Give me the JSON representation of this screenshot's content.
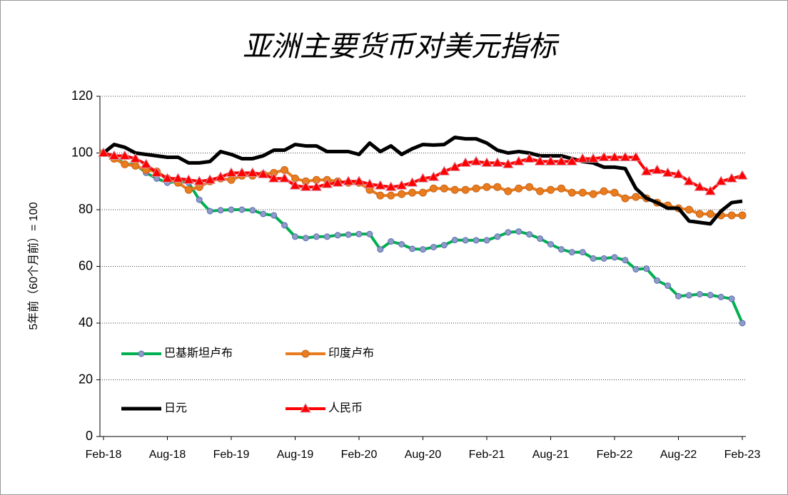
{
  "chart_data": {
    "type": "line",
    "title": "亚洲主要货币对美元指标",
    "y_label": "5年前（60个月前）= 100",
    "categories": [
      "Feb-18",
      null,
      null,
      null,
      null,
      null,
      "Aug-18",
      null,
      null,
      null,
      null,
      null,
      "Feb-19",
      null,
      null,
      null,
      null,
      null,
      "Aug-19",
      null,
      null,
      null,
      null,
      null,
      "Feb-20",
      null,
      null,
      null,
      null,
      null,
      "Aug-20",
      null,
      null,
      null,
      null,
      null,
      "Feb-21",
      null,
      null,
      null,
      null,
      null,
      "Aug-21",
      null,
      null,
      null,
      null,
      null,
      "Feb-22",
      null,
      null,
      null,
      null,
      null,
      "Aug-22",
      null,
      null,
      null,
      null,
      null,
      "Feb-23"
    ],
    "ylim": [
      0,
      120
    ],
    "yticks": [
      0,
      20,
      40,
      60,
      80,
      100,
      120
    ],
    "grid": true,
    "series": [
      {
        "name": "巴基斯坦卢布",
        "color": "#00b050",
        "marker": "circle",
        "values": [
          100,
          99,
          96,
          96,
          93,
          91,
          89.5,
          90,
          89.5,
          83.5,
          79.5,
          79.8,
          80,
          80,
          79.8,
          78.5,
          78,
          74.5,
          70.5,
          70,
          70.5,
          70.5,
          71,
          71.2,
          71.4,
          71.4,
          66,
          68.8,
          67.8,
          66.2,
          66,
          66.8,
          67.5,
          69.3,
          69.2,
          69.2,
          69.2,
          70.5,
          72,
          72.3,
          71.3,
          69.8,
          67.8,
          66,
          65,
          65,
          62.8,
          62.8,
          63.2,
          62.2,
          59,
          59.2,
          55,
          53.2,
          49.5,
          49.8,
          50.2,
          49.9,
          49.2,
          48.6,
          40
        ]
      },
      {
        "name": "印度卢布",
        "color": "#e87c1e",
        "marker": "circle",
        "values": [
          100,
          98,
          96,
          95.5,
          94,
          93.5,
          91,
          89.5,
          87,
          88,
          90,
          91,
          90.5,
          92,
          92,
          92.5,
          93,
          94,
          91,
          90,
          90.5,
          90.5,
          90,
          89.5,
          89.5,
          87,
          85,
          85,
          85.5,
          86,
          86,
          87.5,
          87.5,
          87,
          87,
          87.5,
          88,
          88,
          86.5,
          87.5,
          88,
          86.5,
          87,
          87.5,
          86,
          86,
          85.5,
          86.5,
          86,
          84,
          84.5,
          84,
          82.5,
          81.5,
          80.5,
          80,
          78.5,
          78.5,
          78,
          78,
          78
        ]
      },
      {
        "name": "日元",
        "color": "#000000",
        "marker": "none",
        "values": [
          100,
          103,
          102,
          100,
          99.5,
          99,
          98.5,
          98.5,
          96.5,
          96.5,
          97,
          100.5,
          99.5,
          98,
          98,
          99,
          101,
          101,
          103,
          102.5,
          102.5,
          100.5,
          100.5,
          100.5,
          99.5,
          103.5,
          100.5,
          102.5,
          99.5,
          101.5,
          103,
          102.8,
          103,
          105.5,
          105,
          105,
          103.5,
          101,
          100,
          100.5,
          100,
          99,
          99,
          99,
          98,
          97,
          96.5,
          95,
          95,
          94.5,
          87.5,
          84,
          82.5,
          80.5,
          80.5,
          76,
          75.5,
          75,
          79.5,
          82.5,
          83
        ]
      },
      {
        "name": "人民币",
        "color": "#ff0000",
        "marker": "triangle",
        "values": [
          100,
          99,
          99,
          98,
          96,
          93,
          91,
          91,
          90.5,
          90,
          90.5,
          91.5,
          93,
          93,
          93,
          92.5,
          91,
          91,
          88.5,
          88,
          88,
          89,
          89.5,
          90,
          90,
          89,
          88.5,
          88,
          88.5,
          89.5,
          91,
          91.5,
          93.5,
          95,
          96.5,
          97,
          96.5,
          96.5,
          96,
          97,
          98,
          97,
          97,
          97,
          97,
          98,
          98,
          98.5,
          98.5,
          98.5,
          98.5,
          93.5,
          94,
          93,
          92.5,
          90,
          88,
          86.5,
          90,
          91,
          92
        ]
      }
    ]
  }
}
